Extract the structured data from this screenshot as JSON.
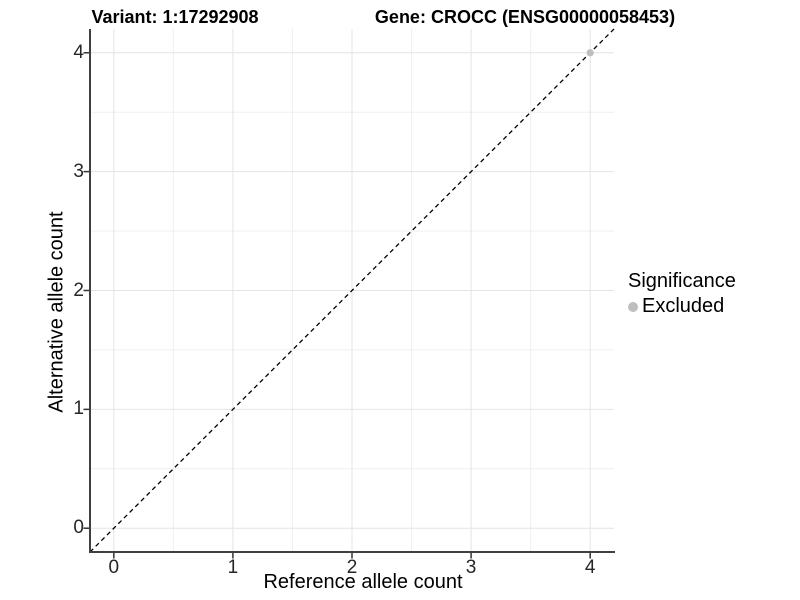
{
  "titles": {
    "left": "Variant: 1:17292908",
    "right": "Gene: CROCC (ENSG00000058453)"
  },
  "axes": {
    "x_label": "Reference allele count",
    "y_label": "Alternative allele count"
  },
  "legend": {
    "title": "Significance",
    "position": "right",
    "items": [
      {
        "label": "Excluded",
        "color": "#bebebe"
      }
    ]
  },
  "colors": {
    "background": "#ffffff",
    "grid_major": "#e4e4e4",
    "grid_minor": "#efefef",
    "axis_line": "#404040",
    "tick_mark": "#333333",
    "reference_line": "#000000",
    "excluded_point": "#bebebe"
  },
  "chart_data": {
    "type": "scatter",
    "title": "Variant: 1:17292908 / Gene: CROCC (ENSG00000058453)",
    "xlabel": "Reference allele count",
    "ylabel": "Alternative allele count",
    "xlim": [
      -0.2,
      4.2
    ],
    "ylim": [
      -0.2,
      4.2
    ],
    "xticks": [
      0,
      1,
      2,
      3,
      4
    ],
    "yticks": [
      0,
      1,
      2,
      3,
      4
    ],
    "x_minor_ticks": [
      0.5,
      1.5,
      2.5,
      3.5
    ],
    "y_minor_ticks": [
      0.5,
      1.5,
      2.5,
      3.5
    ],
    "grid": true,
    "legend_position": "right",
    "reference_line": {
      "style": "dashed",
      "from": [
        -0.2,
        -0.2
      ],
      "to": [
        4.2,
        4.2
      ],
      "meaning": "identity y = x"
    },
    "series": [
      {
        "name": "Excluded",
        "color": "#bebebe",
        "marker": "circle",
        "points": [
          {
            "x": 4,
            "y": 4
          }
        ]
      }
    ]
  }
}
